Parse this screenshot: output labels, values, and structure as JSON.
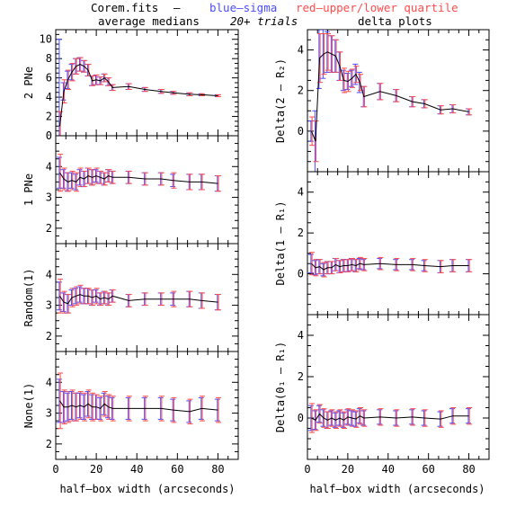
{
  "header": {
    "file_label": "Corem.fits",
    "dash": "–",
    "blue_label": "blue–sigma",
    "red_label": "red–upper/lower quartile",
    "left_title": "average medians",
    "center_note": "20+ trials",
    "right_title": "delta plots"
  },
  "colors": {
    "line": "#000000",
    "sigma": "#4b4bff",
    "quartile": "#ff4b4b"
  },
  "xlabel": "half–box width (arcseconds)",
  "chart_data": [
    {
      "type": "line",
      "ylabel": "2 PNe",
      "xlim": [
        0,
        90
      ],
      "ylim": [
        0,
        11
      ],
      "xticks": [
        0,
        20,
        40,
        60,
        80
      ],
      "yticks": [
        0,
        2,
        4,
        6,
        8,
        10
      ],
      "series": [
        {
          "x": [
            2,
            4,
            6,
            8,
            10,
            12,
            14,
            16,
            18,
            20,
            22,
            24,
            26,
            28,
            36,
            44,
            52,
            58,
            66,
            72,
            80
          ],
          "y": [
            1.0,
            4.6,
            5.8,
            6.6,
            7.2,
            7.4,
            7.2,
            6.8,
            5.7,
            5.8,
            5.7,
            6.0,
            5.6,
            5.0,
            5.1,
            4.8,
            4.6,
            4.45,
            4.3,
            4.25,
            4.15
          ],
          "sigma": [
            9.0,
            0.9,
            0.9,
            0.8,
            0.8,
            0.7,
            0.6,
            0.6,
            0.5,
            0.5,
            0.4,
            0.4,
            0.4,
            0.3,
            0.3,
            0.2,
            0.2,
            0.15,
            0.15,
            0.1,
            0.1
          ],
          "quartile": [
            1.5,
            1.2,
            1.0,
            0.9,
            0.8,
            0.7,
            0.6,
            0.6,
            0.5,
            0.5,
            0.4,
            0.4,
            0.4,
            0.3,
            0.3,
            0.2,
            0.2,
            0.15,
            0.15,
            0.1,
            0.1
          ]
        }
      ]
    },
    {
      "type": "line",
      "ylabel": "1 PNe",
      "xlim": [
        0,
        90
      ],
      "ylim": [
        1.5,
        5
      ],
      "xticks": [
        0,
        20,
        40,
        60,
        80
      ],
      "yticks": [
        2,
        3,
        4
      ],
      "series": [
        {
          "x": [
            2,
            4,
            6,
            8,
            10,
            12,
            14,
            16,
            18,
            20,
            22,
            24,
            26,
            28,
            36,
            44,
            52,
            58,
            66,
            72,
            80
          ],
          "y": [
            3.8,
            3.6,
            3.5,
            3.55,
            3.5,
            3.65,
            3.6,
            3.7,
            3.65,
            3.7,
            3.65,
            3.6,
            3.7,
            3.65,
            3.65,
            3.6,
            3.6,
            3.55,
            3.5,
            3.5,
            3.45
          ],
          "sigma": [
            0.5,
            0.3,
            0.3,
            0.25,
            0.25,
            0.25,
            0.25,
            0.25,
            0.25,
            0.2,
            0.2,
            0.2,
            0.2,
            0.2,
            0.2,
            0.2,
            0.2,
            0.2,
            0.25,
            0.25,
            0.25
          ],
          "quartile": [
            0.6,
            0.35,
            0.3,
            0.3,
            0.3,
            0.3,
            0.25,
            0.25,
            0.25,
            0.25,
            0.2,
            0.2,
            0.2,
            0.2,
            0.2,
            0.2,
            0.2,
            0.25,
            0.25,
            0.25,
            0.25
          ]
        }
      ]
    },
    {
      "type": "line",
      "ylabel": "Random(1)",
      "xlim": [
        0,
        90
      ],
      "ylim": [
        1.5,
        5
      ],
      "xticks": [
        0,
        20,
        40,
        60,
        80
      ],
      "yticks": [
        2,
        3,
        4
      ],
      "series": [
        {
          "x": [
            2,
            4,
            6,
            8,
            10,
            12,
            14,
            16,
            18,
            20,
            22,
            24,
            26,
            28,
            36,
            44,
            52,
            58,
            66,
            72,
            80
          ],
          "y": [
            3.3,
            3.1,
            3.05,
            3.25,
            3.3,
            3.35,
            3.3,
            3.3,
            3.25,
            3.3,
            3.2,
            3.25,
            3.2,
            3.3,
            3.15,
            3.2,
            3.2,
            3.2,
            3.2,
            3.15,
            3.1
          ],
          "sigma": [
            0.45,
            0.3,
            0.3,
            0.25,
            0.25,
            0.25,
            0.25,
            0.25,
            0.25,
            0.2,
            0.2,
            0.2,
            0.2,
            0.2,
            0.2,
            0.2,
            0.2,
            0.2,
            0.25,
            0.25,
            0.25
          ],
          "quartile": [
            0.55,
            0.35,
            0.3,
            0.3,
            0.3,
            0.3,
            0.25,
            0.25,
            0.25,
            0.25,
            0.2,
            0.2,
            0.2,
            0.2,
            0.2,
            0.2,
            0.2,
            0.25,
            0.25,
            0.25,
            0.25
          ]
        }
      ]
    },
    {
      "type": "line",
      "ylabel": "None(1)",
      "xlim": [
        0,
        90
      ],
      "ylim": [
        1.5,
        5
      ],
      "xticks": [
        0,
        20,
        40,
        60,
        80
      ],
      "yticks": [
        2,
        3,
        4
      ],
      "series": [
        {
          "x": [
            2,
            4,
            6,
            8,
            10,
            12,
            14,
            16,
            18,
            20,
            22,
            24,
            26,
            28,
            36,
            44,
            52,
            58,
            66,
            72,
            80
          ],
          "y": [
            3.4,
            3.2,
            3.2,
            3.25,
            3.2,
            3.25,
            3.2,
            3.3,
            3.2,
            3.2,
            3.15,
            3.3,
            3.2,
            3.15,
            3.15,
            3.15,
            3.15,
            3.1,
            3.05,
            3.15,
            3.1
          ],
          "sigma": [
            0.7,
            0.5,
            0.45,
            0.45,
            0.45,
            0.4,
            0.4,
            0.4,
            0.4,
            0.4,
            0.35,
            0.35,
            0.35,
            0.35,
            0.35,
            0.35,
            0.35,
            0.35,
            0.35,
            0.35,
            0.35
          ],
          "quartile": [
            0.9,
            0.55,
            0.5,
            0.5,
            0.45,
            0.45,
            0.45,
            0.45,
            0.45,
            0.4,
            0.4,
            0.4,
            0.4,
            0.4,
            0.4,
            0.4,
            0.4,
            0.4,
            0.4,
            0.4,
            0.4
          ]
        }
      ]
    },
    {
      "type": "line",
      "ylabel": "Delta(2 – R₂)",
      "xlim": [
        0,
        90
      ],
      "ylim": [
        -2,
        5
      ],
      "xticks": [
        0,
        20,
        40,
        60,
        80
      ],
      "yticks": [
        0,
        2,
        4
      ],
      "series": [
        {
          "x": [
            2,
            4,
            6,
            8,
            10,
            12,
            14,
            16,
            18,
            20,
            22,
            24,
            26,
            28,
            36,
            44,
            52,
            58,
            66,
            72,
            80
          ],
          "y": [
            0.0,
            -0.5,
            3.6,
            3.8,
            3.9,
            3.8,
            3.7,
            3.2,
            2.5,
            2.45,
            2.6,
            2.8,
            2.4,
            1.7,
            1.95,
            1.75,
            1.45,
            1.35,
            1.05,
            1.1,
            0.95
          ],
          "sigma": [
            0.5,
            1.5,
            1.5,
            1.2,
            1.0,
            0.9,
            0.8,
            0.7,
            0.5,
            0.4,
            0.4,
            0.5,
            0.5,
            0.5,
            0.4,
            0.3,
            0.25,
            0.2,
            0.2,
            0.2,
            0.15
          ],
          "quartile": [
            0.7,
            1.0,
            1.2,
            1.0,
            0.9,
            0.9,
            0.8,
            0.7,
            0.6,
            0.5,
            0.45,
            0.4,
            0.4,
            0.5,
            0.4,
            0.3,
            0.25,
            0.2,
            0.2,
            0.2,
            0.15
          ]
        }
      ]
    },
    {
      "type": "line",
      "ylabel": "Delta(1 – R₁)",
      "xlim": [
        0,
        90
      ],
      "ylim": [
        -2,
        5
      ],
      "xticks": [
        0,
        20,
        40,
        60,
        80
      ],
      "yticks": [
        0,
        2,
        4
      ],
      "series": [
        {
          "x": [
            2,
            4,
            6,
            8,
            10,
            12,
            14,
            16,
            18,
            20,
            22,
            24,
            26,
            28,
            36,
            44,
            52,
            58,
            66,
            72,
            80
          ],
          "y": [
            0.5,
            0.3,
            0.35,
            0.2,
            0.3,
            0.3,
            0.45,
            0.35,
            0.4,
            0.4,
            0.45,
            0.4,
            0.5,
            0.45,
            0.5,
            0.45,
            0.45,
            0.4,
            0.35,
            0.4,
            0.4
          ],
          "sigma": [
            0.45,
            0.35,
            0.35,
            0.3,
            0.3,
            0.3,
            0.3,
            0.3,
            0.3,
            0.3,
            0.3,
            0.3,
            0.25,
            0.25,
            0.25,
            0.25,
            0.25,
            0.25,
            0.3,
            0.3,
            0.3
          ],
          "quartile": [
            0.55,
            0.4,
            0.35,
            0.35,
            0.3,
            0.3,
            0.3,
            0.3,
            0.3,
            0.3,
            0.3,
            0.3,
            0.3,
            0.3,
            0.3,
            0.3,
            0.3,
            0.3,
            0.3,
            0.3,
            0.3
          ]
        }
      ]
    },
    {
      "type": "line",
      "ylabel": "Delta(0₁ – R₁)",
      "xlim": [
        0,
        90
      ],
      "ylim": [
        -2,
        5
      ],
      "xticks": [
        0,
        20,
        40,
        60,
        80
      ],
      "yticks": [
        0,
        2,
        4
      ],
      "series": [
        {
          "x": [
            2,
            4,
            6,
            8,
            10,
            12,
            14,
            16,
            18,
            20,
            22,
            24,
            26,
            28,
            36,
            44,
            52,
            58,
            66,
            72,
            80
          ],
          "y": [
            0.0,
            -0.1,
            0.2,
            0.0,
            -0.1,
            0.0,
            -0.1,
            0.0,
            -0.1,
            0.05,
            0.0,
            -0.05,
            0.1,
            0.0,
            0.05,
            0.0,
            0.05,
            0.0,
            -0.05,
            0.1,
            0.1
          ],
          "sigma": [
            0.6,
            0.45,
            0.4,
            0.4,
            0.4,
            0.35,
            0.35,
            0.35,
            0.35,
            0.35,
            0.35,
            0.35,
            0.35,
            0.35,
            0.35,
            0.35,
            0.35,
            0.35,
            0.35,
            0.35,
            0.35
          ],
          "quartile": [
            0.7,
            0.5,
            0.45,
            0.45,
            0.4,
            0.4,
            0.4,
            0.4,
            0.4,
            0.4,
            0.4,
            0.4,
            0.4,
            0.4,
            0.4,
            0.4,
            0.4,
            0.4,
            0.4,
            0.4,
            0.4
          ]
        }
      ]
    }
  ]
}
